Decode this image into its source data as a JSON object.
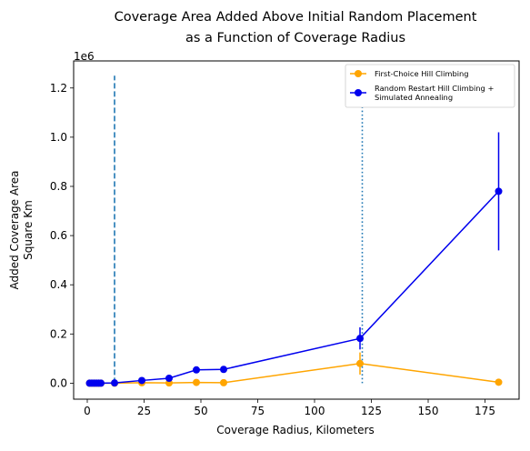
{
  "chart_data": {
    "type": "line",
    "title": [
      "Coverage Area Added Above Initial Random Placement",
      "as a Function of Coverage Radius"
    ],
    "xlabel": "Coverage Radius, Kilometers",
    "ylabel": [
      "Added Coverage Area",
      "Square Km"
    ],
    "y_offset_label": "1e6",
    "xlim": [
      -6,
      190
    ],
    "ylim": [
      -0.065,
      1.31
    ],
    "xticks": [
      0,
      25,
      50,
      75,
      100,
      125,
      150,
      175
    ],
    "yticks": [
      0.0,
      0.2,
      0.4,
      0.6,
      0.8,
      1.0,
      1.2
    ],
    "ytick_labels": [
      "0.0",
      "0.2",
      "0.4",
      "0.6",
      "0.8",
      "1.0",
      "1.2"
    ],
    "grid": false,
    "legend_position": "top-right",
    "series": [
      {
        "name": "First-Choice Hill Climbing",
        "color": "#FFA500",
        "x": [
          1,
          2,
          3,
          4,
          5,
          6,
          12,
          24,
          36,
          48,
          60,
          120,
          181
        ],
        "y": [
          0.0,
          0.0,
          0.0,
          0.0,
          0.0,
          0.0,
          0.0,
          0.002,
          0.001,
          0.003,
          0.002,
          0.08,
          0.004
        ],
        "err": [
          0,
          0,
          0,
          0,
          0,
          0,
          0,
          0.002,
          0.002,
          0.003,
          0.003,
          0.045,
          0.003
        ]
      },
      {
        "name": "Random Restart Hill Climbing +\nSimulated Annealing",
        "color": "#0000EE",
        "x": [
          1,
          2,
          3,
          4,
          5,
          6,
          12,
          24,
          36,
          48,
          60,
          120,
          181
        ],
        "y": [
          0.0,
          0.0,
          0.0,
          0.0,
          0.0,
          0.0,
          0.001,
          0.011,
          0.02,
          0.054,
          0.056,
          0.182,
          0.78
        ],
        "err": [
          0,
          0,
          0,
          0,
          0,
          0,
          0.001,
          0.004,
          0.005,
          0.009,
          0.007,
          0.045,
          0.24
        ]
      }
    ],
    "vlines": [
      {
        "x": 12,
        "style": "dashed",
        "color": "#1f77b4",
        "ymin": 0.0,
        "ymax": 1.25
      },
      {
        "x": 121,
        "style": "dotted",
        "color": "#1f77b4",
        "ymin": 0.0,
        "ymax": 1.25
      }
    ]
  }
}
